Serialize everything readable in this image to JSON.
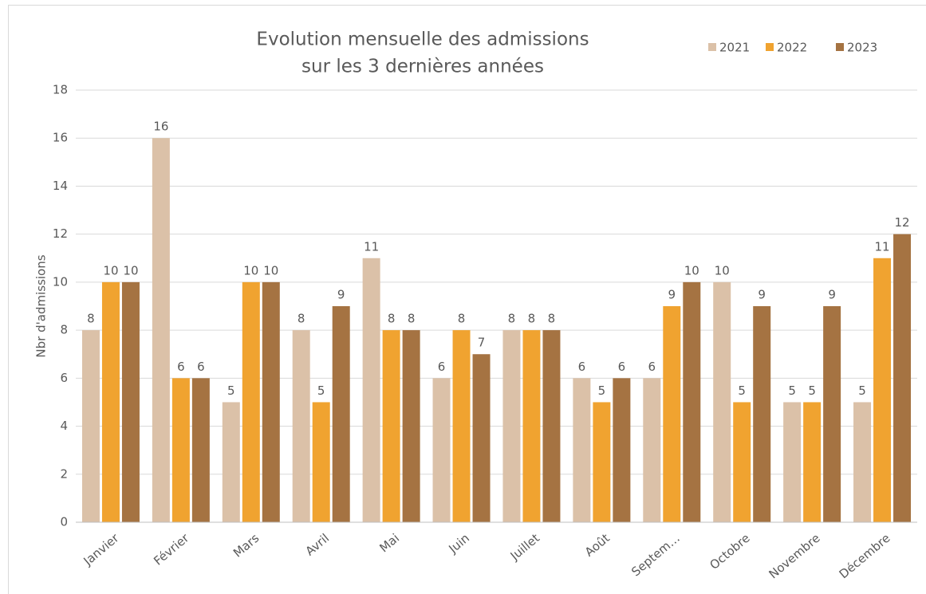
{
  "chart_data": {
    "type": "bar",
    "title": [
      "Evolution mensuelle des admissions",
      "sur les 3 dernières années"
    ],
    "ylabel": "Nbr d'admissions",
    "categories": [
      "Janvier",
      "Février",
      "Mars",
      "Avril",
      "Mai",
      "Juin",
      "Juillet",
      "Août",
      "Septem…",
      "Octobre",
      "Novembre",
      "Décembre"
    ],
    "series": [
      {
        "name": "2021",
        "color": "#dbc1a8",
        "values": [
          8,
          16,
          5,
          8,
          11,
          6,
          8,
          6,
          6,
          10,
          5,
          5
        ]
      },
      {
        "name": "2022",
        "color": "#f0a330",
        "values": [
          10,
          6,
          10,
          5,
          8,
          8,
          8,
          5,
          9,
          5,
          5,
          11
        ]
      },
      {
        "name": "2023",
        "color": "#a57342",
        "values": [
          10,
          6,
          10,
          9,
          8,
          7,
          8,
          6,
          10,
          9,
          9,
          12
        ]
      }
    ],
    "ylim": [
      0,
      18
    ],
    "yticks": [
      0,
      2,
      4,
      6,
      8,
      10,
      12,
      14,
      16,
      18
    ],
    "grid": true,
    "legend": "top-right"
  }
}
